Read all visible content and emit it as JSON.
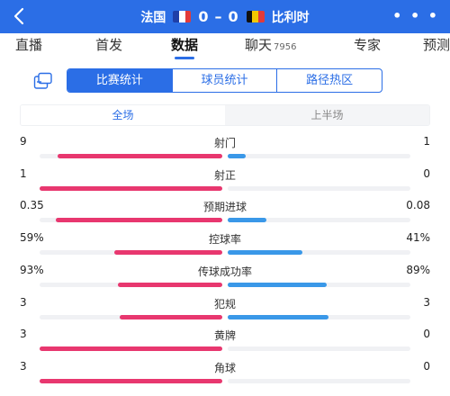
{
  "header": {
    "home_team": "法国",
    "away_team": "比利时",
    "home_score": "0",
    "away_score": "0",
    "score_separator": "–",
    "home_flag_colors": [
      "#1f3fa8",
      "#ffffff",
      "#e23a3a"
    ],
    "away_flag_colors": [
      "#111111",
      "#f5c800",
      "#e23a3a"
    ],
    "more_label": "• • •",
    "back_icon": "chevron-left-icon"
  },
  "tabs": [
    {
      "label": "直播",
      "count": ""
    },
    {
      "label": "首发",
      "count": ""
    },
    {
      "label": "数据",
      "count": "",
      "active": true
    },
    {
      "label": "聊天",
      "count": "7956"
    },
    {
      "label": "专家",
      "count": ""
    },
    {
      "label": "预测",
      "count": ""
    }
  ],
  "stat_type_tabs": [
    {
      "label": "比赛统计",
      "active": true
    },
    {
      "label": "球员统计"
    },
    {
      "label": "路径热区"
    }
  ],
  "period_tabs": [
    {
      "label": "全场",
      "active": true
    },
    {
      "label": "上半场"
    }
  ],
  "stats": [
    {
      "name": "射门",
      "home": "9",
      "away": "1",
      "home_pct": 0.9,
      "away_pct": 0.1
    },
    {
      "name": "射正",
      "home": "1",
      "away": "0",
      "home_pct": 1.0,
      "away_pct": 0.0
    },
    {
      "name": "预期进球",
      "home": "0.35",
      "away": "0.08",
      "home_pct": 0.91,
      "away_pct": 0.21
    },
    {
      "name": "控球率",
      "home": "59%",
      "away": "41%",
      "home_pct": 0.59,
      "away_pct": 0.41
    },
    {
      "name": "传球成功率",
      "home": "93%",
      "away": "89%",
      "home_pct": 0.57,
      "away_pct": 0.54
    },
    {
      "name": "犯规",
      "home": "3",
      "away": "3",
      "home_pct": 0.56,
      "away_pct": 0.55
    },
    {
      "name": "黄牌",
      "home": "3",
      "away": "0",
      "home_pct": 1.0,
      "away_pct": 0.0
    },
    {
      "name": "角球",
      "home": "3",
      "away": "0",
      "home_pct": 1.0,
      "away_pct": 0.0
    }
  ],
  "colors": {
    "accent": "#2b6ee6",
    "home_bar": "#e8376f",
    "away_bar": "#3a98e8"
  }
}
